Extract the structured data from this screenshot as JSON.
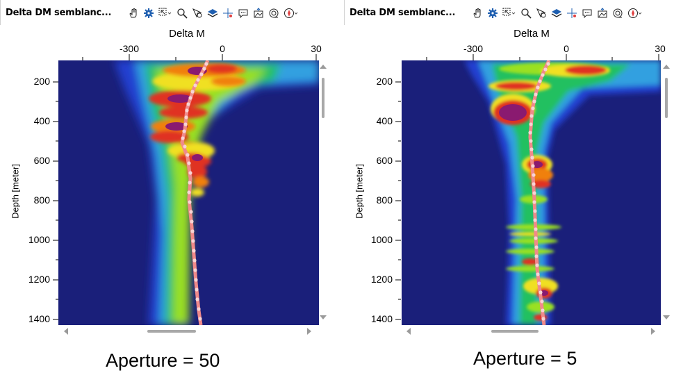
{
  "panels": [
    {
      "title": "Delta DM semblanc...",
      "x_axis_title": "Delta M",
      "x_ticks": [
        "-300",
        "0",
        "30"
      ],
      "y_axis_title": "Depth [meter]",
      "y_ticks": [
        "200",
        "400",
        "600",
        "800",
        "1000",
        "1200",
        "1400"
      ],
      "caption": "Aperture = 50"
    },
    {
      "title": "Delta DM semblanc...",
      "x_axis_title": "Delta M",
      "x_ticks": [
        "-300",
        "0",
        "30"
      ],
      "y_axis_title": "Depth [meter]",
      "y_ticks": [
        "200",
        "400",
        "600",
        "800",
        "1000",
        "1200",
        "1400"
      ],
      "caption": "Aperture = 5"
    }
  ],
  "toolbar_icons": [
    "pan-hand-icon",
    "settings-gear-icon",
    "zoom-select-icon",
    "magnifier-icon",
    "pick-pointer-icon",
    "layers-icon",
    "crosshair-icon",
    "comment-icon",
    "export-image-icon",
    "spiral-icon",
    "compass-icon"
  ],
  "colors": {
    "background": "#1a1f7a",
    "track_line": "#f08a8a",
    "track_dot": "#f7d4d4",
    "icon_blue": "#1f5fb0"
  }
}
